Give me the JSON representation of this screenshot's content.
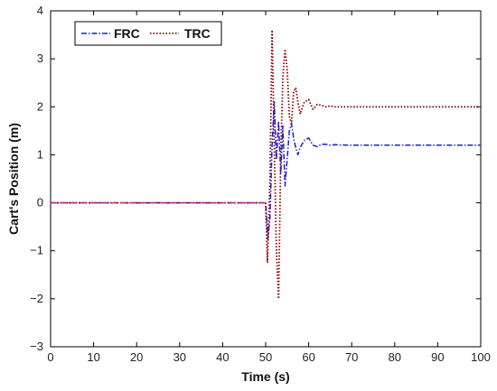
{
  "chart_data": {
    "type": "line",
    "xlabel": "Time (s)",
    "ylabel": "Cart's Position (m)",
    "xlim": [
      0,
      100
    ],
    "ylim": [
      -3,
      4
    ],
    "x_ticks": [
      "0",
      "10",
      "20",
      "30",
      "40",
      "50",
      "60",
      "70",
      "80",
      "90",
      "100"
    ],
    "y_ticks": [
      "−3",
      "−2",
      "−1",
      "0",
      "1",
      "2",
      "3",
      "4"
    ],
    "grid": false,
    "legend_position": "top-left",
    "series": [
      {
        "name": "FRC",
        "color": "#1f1fd6",
        "style": "dashdot",
        "x": [
          0,
          50,
          50.5,
          51,
          51.5,
          52,
          52.5,
          53,
          53.5,
          54,
          54.5,
          55,
          55.5,
          56,
          56.5,
          57,
          57.5,
          58,
          59,
          60,
          61,
          62,
          63,
          64,
          65,
          66,
          70,
          80,
          90,
          100
        ],
        "y": [
          0,
          0,
          -0.75,
          -0.3,
          1.2,
          2.1,
          0.9,
          1.7,
          0.6,
          1.6,
          0.35,
          0.9,
          1.5,
          1.65,
          1.35,
          1.15,
          1.0,
          1.15,
          1.3,
          1.35,
          1.2,
          1.17,
          1.22,
          1.22,
          1.2,
          1.21,
          1.2,
          1.2,
          1.2,
          1.2
        ]
      },
      {
        "name": "TRC",
        "color": "#8b0000",
        "style": "dotted",
        "x": [
          0,
          50,
          50.4,
          51,
          51.5,
          52,
          52.5,
          53,
          53.5,
          54,
          54.5,
          55,
          55.5,
          56,
          56.5,
          57,
          57.5,
          58,
          59,
          60,
          61,
          62,
          63,
          64,
          65,
          66,
          70,
          80,
          90,
          100
        ],
        "y": [
          0,
          0,
          -1.25,
          0.5,
          3.6,
          1.2,
          -1.0,
          -2.0,
          1.0,
          2.6,
          3.2,
          2.8,
          1.8,
          1.65,
          2.3,
          2.4,
          2.1,
          1.85,
          2.1,
          2.15,
          1.95,
          2.05,
          2.03,
          2.0,
          2.02,
          2.0,
          2.0,
          2.0,
          2.0,
          2.0
        ]
      },
      {
        "name": "",
        "color": "#c03080",
        "style": "dashed",
        "x": [
          0,
          50
        ],
        "y": [
          0,
          0
        ]
      }
    ]
  }
}
